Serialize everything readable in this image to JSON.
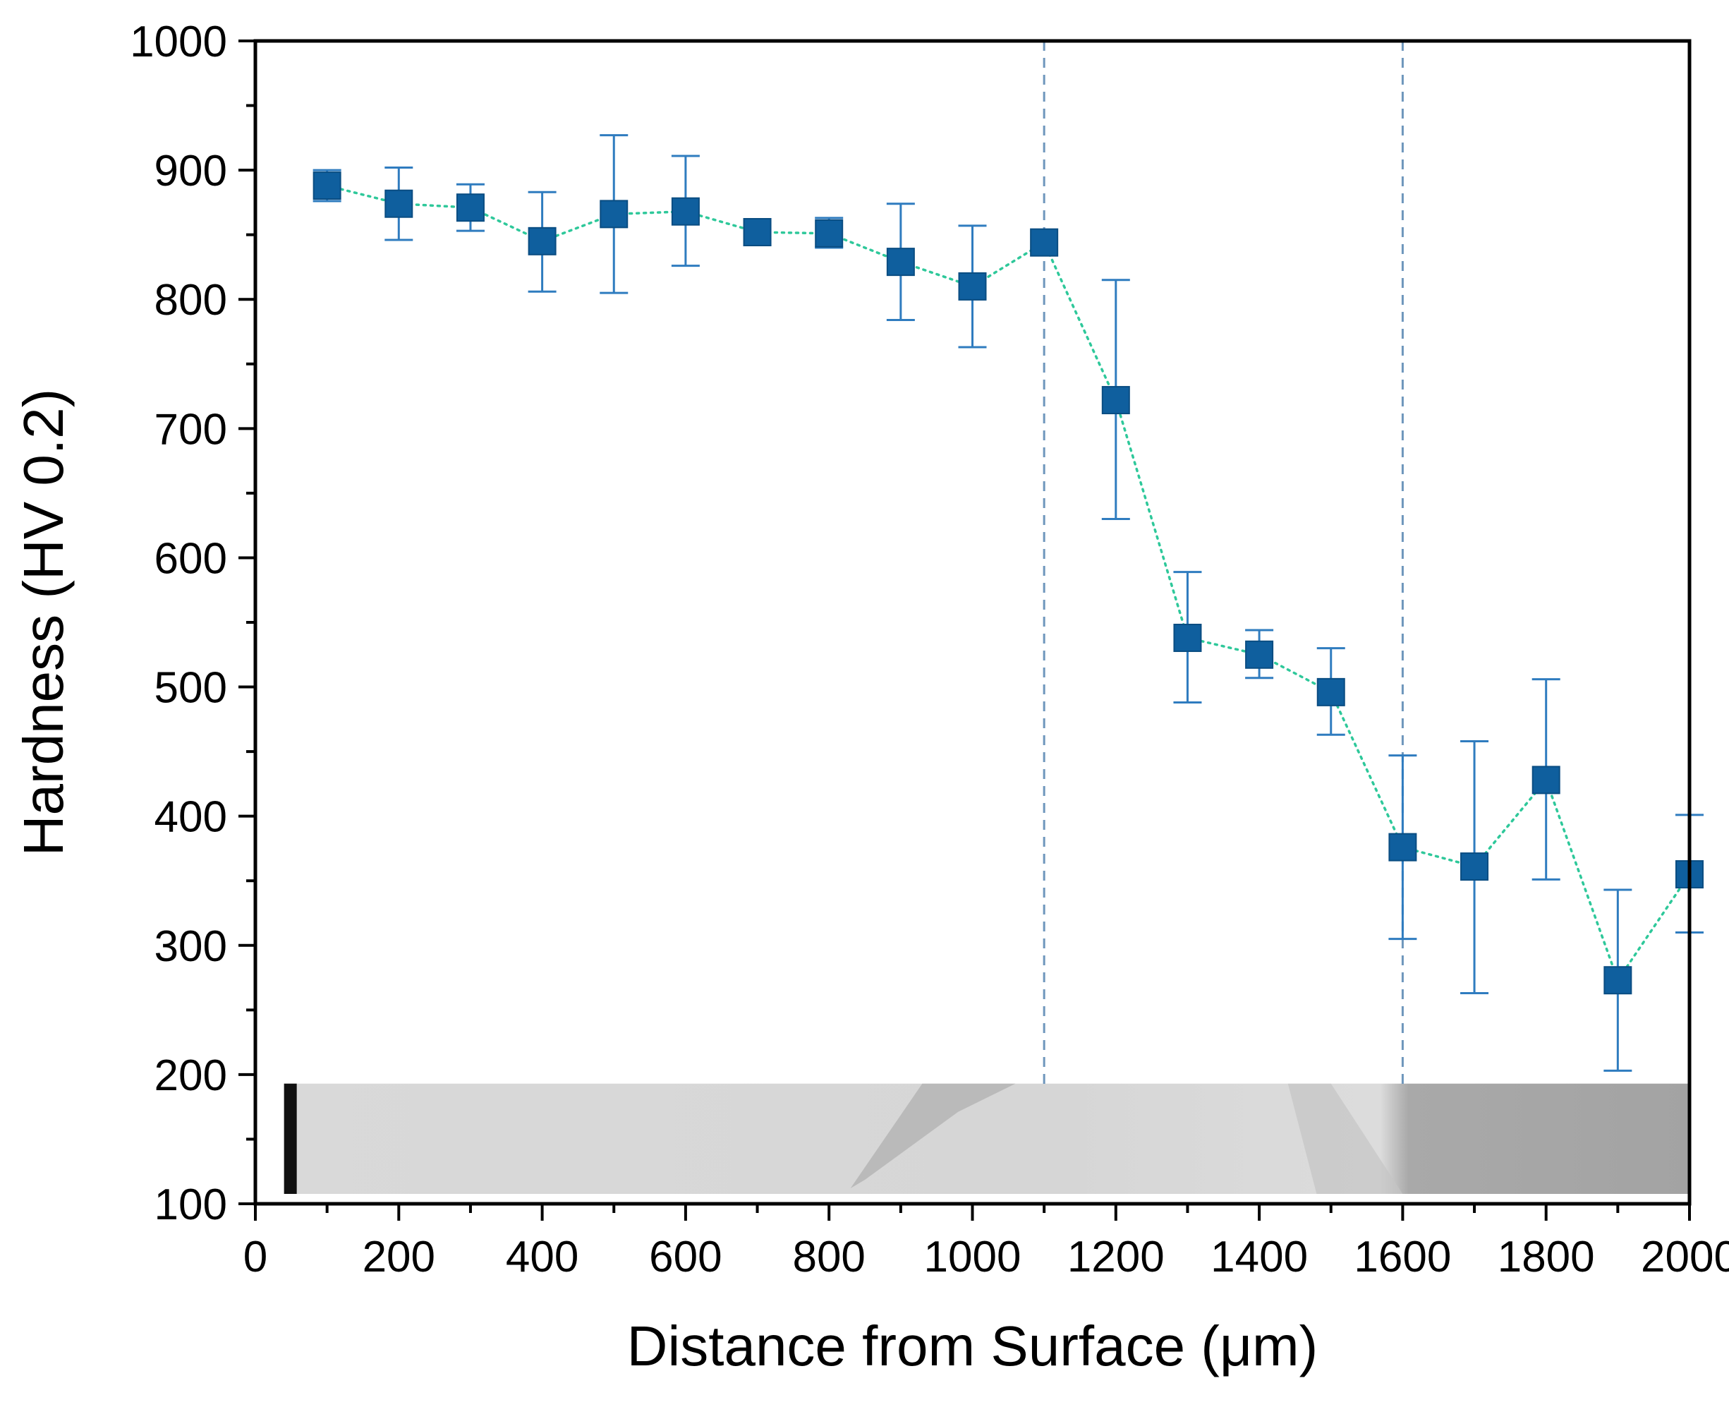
{
  "chart_data": {
    "type": "scatter",
    "title": "",
    "xlabel": "Distance from Surface (μm)",
    "ylabel": "Hardness (HV 0.2)",
    "xlim": [
      0,
      2000
    ],
    "ylim": [
      100,
      1000
    ],
    "x_ticks": [
      "0",
      "200",
      "400",
      "600",
      "800",
      "1000",
      "1200",
      "1400",
      "1600",
      "1800",
      "2000"
    ],
    "y_ticks": [
      "100",
      "200",
      "300",
      "400",
      "500",
      "600",
      "700",
      "800",
      "900",
      "1000"
    ],
    "series": [
      {
        "name": "Hardness",
        "marker": "square",
        "line_style": "dotted",
        "x": [
          100,
          200,
          300,
          400,
          500,
          600,
          700,
          800,
          900,
          1000,
          1100,
          1200,
          1300,
          1400,
          1500,
          1600,
          1700,
          1800,
          1900,
          2000
        ],
        "y": [
          888,
          874,
          871,
          845,
          866,
          868,
          852,
          851,
          829,
          810,
          844,
          722,
          538,
          525,
          496,
          376,
          361,
          428,
          273,
          355
        ],
        "err_low": [
          876,
          846,
          853,
          806,
          805,
          826,
          852,
          840,
          784,
          763,
          844,
          630,
          488,
          507,
          463,
          305,
          263,
          351,
          203,
          310
        ],
        "err_high": [
          900,
          902,
          889,
          883,
          927,
          911,
          852,
          863,
          874,
          857,
          844,
          815,
          589,
          544,
          530,
          447,
          458,
          506,
          343,
          401
        ]
      }
    ],
    "reference_lines": [
      1100,
      1600
    ],
    "inset": {
      "description": "micrograph strip",
      "x_range": [
        40,
        2000
      ],
      "y_range": [
        100,
        193
      ]
    },
    "colors": {
      "marker": "#0f5f9e",
      "error_bar": "#2f7cbf",
      "connector": "#2ec89a",
      "reference_line": "#6e96bc",
      "axis": "#000000"
    }
  }
}
